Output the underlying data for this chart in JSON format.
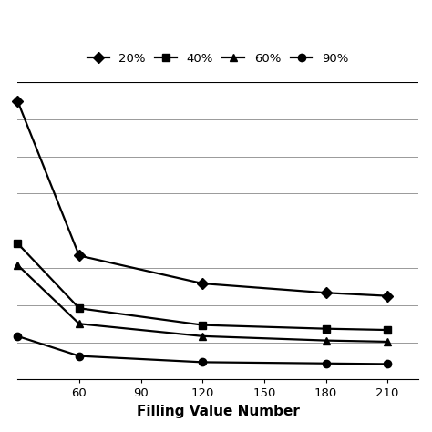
{
  "x_values": [
    30,
    60,
    120,
    180,
    210
  ],
  "series_order": [
    "20%",
    "40%",
    "60%",
    "90%"
  ],
  "series": {
    "20%": {
      "y": [
        4.5,
        2.0,
        1.55,
        1.4,
        1.35
      ],
      "marker": "D",
      "label": "20%"
    },
    "40%": {
      "y": [
        2.2,
        1.15,
        0.88,
        0.82,
        0.8
      ],
      "marker": "s",
      "label": "40%"
    },
    "60%": {
      "y": [
        1.85,
        0.9,
        0.7,
        0.63,
        0.61
      ],
      "marker": "^",
      "label": "60%"
    },
    "90%": {
      "y": [
        0.7,
        0.38,
        0.28,
        0.26,
        0.25
      ],
      "marker": "o",
      "label": "90%"
    }
  },
  "xlabel": "Filling Value Number",
  "xlim": [
    30,
    225
  ],
  "xticks": [
    60,
    90,
    120,
    150,
    180,
    210
  ],
  "ylim": [
    0.0,
    4.8
  ],
  "num_hgrid_lines": 9,
  "grid_color": "#999999",
  "line_color": "#000000",
  "background_color": "#ffffff",
  "xlabel_fontsize": 11,
  "legend_fontsize": 9.5,
  "tick_fontsize": 9.5,
  "line_width": 1.6,
  "marker_size": 6
}
